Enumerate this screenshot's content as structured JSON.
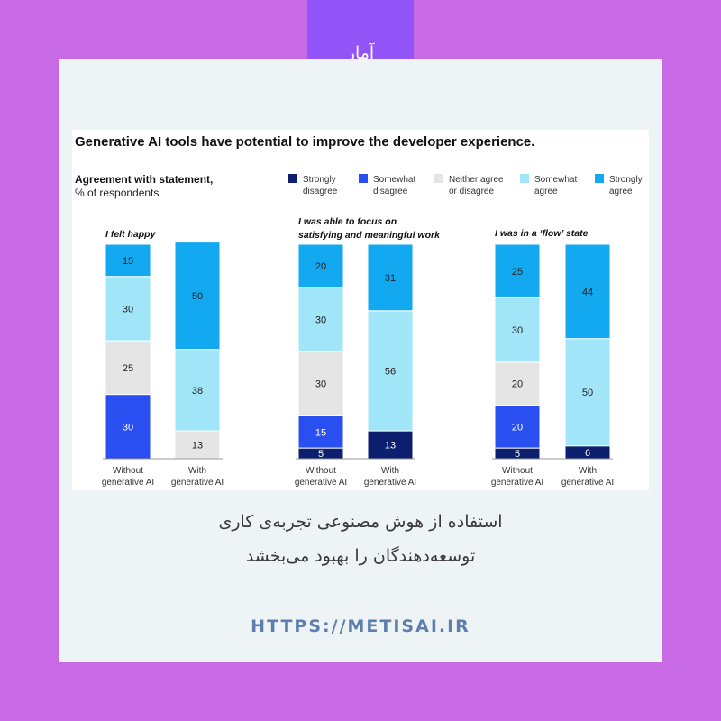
{
  "tag": "آمار",
  "caption": {
    "line1": "استفاده از هوش مصنوعی تجربه‌ی کاری",
    "line2": "توسعه‌دهندگان را بهبود می‌بخشد"
  },
  "url": "HTTPS://METISAI.IR",
  "chart_data": {
    "type": "bar",
    "stacked": true,
    "title": "Generative AI tools have potential to improve the developer experience.",
    "subtitle_line1": "Agreement with statement,",
    "subtitle_line2": "% of respondents",
    "legend": [
      {
        "line1": "Strongly",
        "line2": "disagree",
        "color": "#0b1f6e"
      },
      {
        "line1": "Somewhat",
        "line2": "disagree",
        "color": "#2a4ff0"
      },
      {
        "line1": "Neither agree",
        "line2": "or disagree",
        "color": "#e5e5e5"
      },
      {
        "line1": "Somewhat",
        "line2": "agree",
        "color": "#a1e5f9"
      },
      {
        "line1": "Strongly",
        "line2": "agree",
        "color": "#12a9f0"
      }
    ],
    "bar_label_line1": [
      "Without",
      "With"
    ],
    "bar_label_line2": [
      "generative AI",
      "generative AI"
    ],
    "panels": [
      {
        "title_lines": [
          "I felt happy"
        ],
        "categories": [
          "Without generative AI",
          "With generative AI"
        ],
        "series": [
          {
            "name": "Strongly disagree",
            "values": [
              0,
              0
            ]
          },
          {
            "name": "Somewhat disagree",
            "values": [
              30,
              0
            ]
          },
          {
            "name": "Neither agree or disagree",
            "values": [
              25,
              13
            ]
          },
          {
            "name": "Somewhat agree",
            "values": [
              30,
              38
            ]
          },
          {
            "name": "Strongly agree",
            "values": [
              15,
              50
            ]
          }
        ]
      },
      {
        "title_lines": [
          "I was able to focus on",
          "satisfying and meaningful work"
        ],
        "categories": [
          "Without generative AI",
          "With generative AI"
        ],
        "series": [
          {
            "name": "Strongly disagree",
            "values": [
              5,
              13
            ]
          },
          {
            "name": "Somewhat disagree",
            "values": [
              15,
              0
            ]
          },
          {
            "name": "Neither agree or disagree",
            "values": [
              30,
              0
            ]
          },
          {
            "name": "Somewhat agree",
            "values": [
              30,
              56
            ]
          },
          {
            "name": "Strongly agree",
            "values": [
              20,
              31
            ]
          }
        ]
      },
      {
        "title_lines": [
          "I was in a ‘flow’ state"
        ],
        "categories": [
          "Without generative AI",
          "With generative AI"
        ],
        "series": [
          {
            "name": "Strongly disagree",
            "values": [
              5,
              6
            ]
          },
          {
            "name": "Somewhat disagree",
            "values": [
              20,
              0
            ]
          },
          {
            "name": "Neither agree or disagree",
            "values": [
              20,
              0
            ]
          },
          {
            "name": "Somewhat agree",
            "values": [
              30,
              50
            ]
          },
          {
            "name": "Strongly agree",
            "values": [
              25,
              44
            ]
          }
        ]
      }
    ]
  }
}
